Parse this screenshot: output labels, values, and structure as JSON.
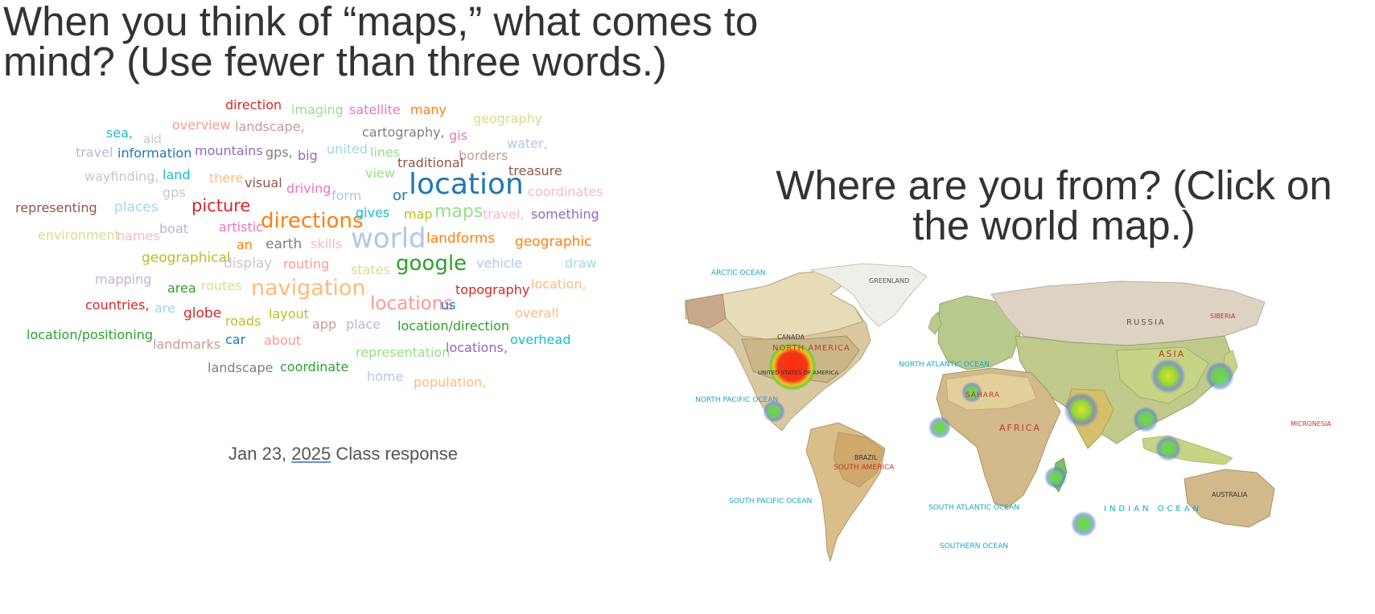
{
  "question1": "When you think of “maps,” what comes to mind? (Use fewer than three words.)",
  "caption": {
    "date": "Jan 23, ",
    "year": "2025",
    "suffix": " Class response"
  },
  "question2": "Where are you from? (Click on the world map.)",
  "word_cloud": [
    {
      "text": "direction",
      "color": "#d62728"
    },
    {
      "text": "imaging",
      "color": "#98df8a"
    },
    {
      "text": "satellite",
      "color": "#e377c2"
    },
    {
      "text": "many",
      "color": "#ff7f0e"
    },
    {
      "text": "geography",
      "color": "#dbdb8d"
    },
    {
      "text": "sea,",
      "color": "#17becf"
    },
    {
      "text": "aid",
      "color": "#c7c7c7"
    },
    {
      "text": "overview",
      "color": "#ff9896"
    },
    {
      "text": "landscape,",
      "color": "#c49c94"
    },
    {
      "text": "cartography,",
      "color": "#7f7f7f"
    },
    {
      "text": "gis",
      "color": "#e377c2"
    },
    {
      "text": "travel",
      "color": "#c5b0d5"
    },
    {
      "text": "information",
      "color": "#1f77b4"
    },
    {
      "text": "mountains",
      "color": "#9467bd"
    },
    {
      "text": "gps,",
      "color": "#7f7f7f"
    },
    {
      "text": "big",
      "color": "#9467bd"
    },
    {
      "text": "united",
      "color": "#9edae5"
    },
    {
      "text": "lines",
      "color": "#98df8a"
    },
    {
      "text": "borders",
      "color": "#c49c94"
    },
    {
      "text": "water,",
      "color": "#aec7e8"
    },
    {
      "text": "wayfinding,",
      "color": "#c7c7c7"
    },
    {
      "text": "land",
      "color": "#17becf"
    },
    {
      "text": "there",
      "color": "#ffbb78"
    },
    {
      "text": "visual",
      "color": "#8c564b"
    },
    {
      "text": "view",
      "color": "#98df8a"
    },
    {
      "text": "traditional",
      "color": "#8c564b"
    },
    {
      "text": "treasure",
      "color": "#8c564b"
    },
    {
      "text": "gps",
      "color": "#c7c7c7"
    },
    {
      "text": "driving",
      "color": "#e377c2"
    },
    {
      "text": "form",
      "color": "#aec7e8"
    },
    {
      "text": "or",
      "color": "#1f77b4"
    },
    {
      "text": "location",
      "color": "#1f77b4"
    },
    {
      "text": "coordinates",
      "color": "#f7b6d2"
    },
    {
      "text": "representing",
      "color": "#8c564b"
    },
    {
      "text": "places",
      "color": "#9edae5"
    },
    {
      "text": "picture",
      "color": "#d62728"
    },
    {
      "text": "directions",
      "color": "#ff7f0e"
    },
    {
      "text": "gives",
      "color": "#17becf"
    },
    {
      "text": "map",
      "color": "#bcbd22"
    },
    {
      "text": "maps",
      "color": "#98df8a"
    },
    {
      "text": "travel,",
      "color": "#f7b6d2"
    },
    {
      "text": "something",
      "color": "#9467bd"
    },
    {
      "text": "environment",
      "color": "#dbdb8d"
    },
    {
      "text": "names",
      "color": "#f7b6d2"
    },
    {
      "text": "boat",
      "color": "#c5b0d5"
    },
    {
      "text": "artistic",
      "color": "#e377c2"
    },
    {
      "text": "an",
      "color": "#ff7f0e"
    },
    {
      "text": "earth",
      "color": "#7f7f7f"
    },
    {
      "text": "skills",
      "color": "#f7b6d2"
    },
    {
      "text": "world",
      "color": "#aec7e8"
    },
    {
      "text": "landforms",
      "color": "#ff7f0e"
    },
    {
      "text": "geographic",
      "color": "#ff7f0e"
    },
    {
      "text": "geographical",
      "color": "#bcbd22"
    },
    {
      "text": "display",
      "color": "#c7c7c7"
    },
    {
      "text": "routing",
      "color": "#ff9896"
    },
    {
      "text": "states",
      "color": "#dbdb8d"
    },
    {
      "text": "google",
      "color": "#2ca02c"
    },
    {
      "text": "vehicle",
      "color": "#aec7e8"
    },
    {
      "text": "draw",
      "color": "#9edae5"
    },
    {
      "text": "mapping",
      "color": "#c5b0d5"
    },
    {
      "text": "area",
      "color": "#2ca02c"
    },
    {
      "text": "routes",
      "color": "#dbdb8d"
    },
    {
      "text": "navigation",
      "color": "#ffbb78"
    },
    {
      "text": "topography",
      "color": "#d62728"
    },
    {
      "text": "location,",
      "color": "#ffbb78"
    },
    {
      "text": "countries,",
      "color": "#d62728"
    },
    {
      "text": "are",
      "color": "#9edae5"
    },
    {
      "text": "globe",
      "color": "#d62728"
    },
    {
      "text": "layout",
      "color": "#bcbd22"
    },
    {
      "text": "locations",
      "color": "#ff9896"
    },
    {
      "text": "us",
      "color": "#1f77b4"
    },
    {
      "text": "overall",
      "color": "#ffbb78"
    },
    {
      "text": "roads",
      "color": "#bcbd22"
    },
    {
      "text": "app",
      "color": "#c49c94"
    },
    {
      "text": "place",
      "color": "#c5b0d5"
    },
    {
      "text": "location/direction",
      "color": "#2ca02c"
    },
    {
      "text": "location/positioning",
      "color": "#2ca02c"
    },
    {
      "text": "landmarks",
      "color": "#c49c94"
    },
    {
      "text": "car",
      "color": "#1f77b4"
    },
    {
      "text": "about",
      "color": "#ff9896"
    },
    {
      "text": "representation",
      "color": "#98df8a"
    },
    {
      "text": "locations,",
      "color": "#9467bd"
    },
    {
      "text": "overhead",
      "color": "#17becf"
    },
    {
      "text": "landscape",
      "color": "#7f7f7f"
    },
    {
      "text": "coordinate",
      "color": "#2ca02c"
    },
    {
      "text": "home",
      "color": "#aec7e8"
    },
    {
      "text": "population,",
      "color": "#ffbb78"
    }
  ],
  "map": {
    "oceans": [
      "ARCTIC OCEAN",
      "NORTH ATLANTIC OCEAN",
      "NORTH PACIFIC OCEAN",
      "SOUTH PACIFIC OCEAN",
      "SOUTH ATLANTIC OCEAN",
      "INDIAN OCEAN",
      "SOUTHERN OCEAN"
    ],
    "regions": [
      "GREENLAND",
      "RUSSIA",
      "SIBERIA",
      "CANADA",
      "NORTH AMERICA",
      "UNITED STATES OF AMERICA",
      "ASIA",
      "AFRICA",
      "SAHARA",
      "SOUTH AMERICA",
      "BRAZIL",
      "AUSTRALIA",
      "MICRONESIA"
    ],
    "heat_points": [
      {
        "name": "usa",
        "level": "high",
        "color": "#e8281c"
      },
      {
        "name": "mexico",
        "level": "low",
        "color": "#7ad63a"
      },
      {
        "name": "west-africa",
        "level": "low",
        "color": "#7ad63a"
      },
      {
        "name": "north-africa",
        "level": "low",
        "color": "#7ad63a"
      },
      {
        "name": "madagascar",
        "level": "low",
        "color": "#7ad63a"
      },
      {
        "name": "india",
        "level": "medium",
        "color": "#9be02a"
      },
      {
        "name": "china",
        "level": "medium",
        "color": "#c8e02a"
      },
      {
        "name": "korea-japan",
        "level": "low",
        "color": "#7ad63a"
      },
      {
        "name": "southeast-asia",
        "level": "low",
        "color": "#7ad63a"
      },
      {
        "name": "indonesia",
        "level": "low",
        "color": "#7ad63a"
      },
      {
        "name": "indian-ocean-island",
        "level": "low",
        "color": "#7ad63a"
      }
    ]
  }
}
